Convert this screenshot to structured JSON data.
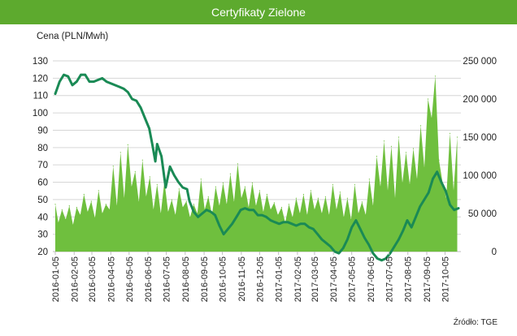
{
  "chart_data": {
    "type": "line",
    "title": "Certyfikaty Zielone",
    "ylabel": "Cena (PLN/Mwh)",
    "source": "Źródło: TGE",
    "ylim": [
      20,
      130
    ],
    "y_ticks": [
      "130",
      "120",
      "110",
      "100",
      "90",
      "80",
      "70",
      "60",
      "50",
      "40",
      "30",
      "20"
    ],
    "y2lim": [
      0,
      250000
    ],
    "y2_ticks": [
      "250 000",
      "200 000",
      "150 000",
      "100 000",
      "50 000",
      "0"
    ],
    "x_start": "2016-01-01",
    "x_end": "2017-10-31",
    "categories": [
      "2016-01-05",
      "2016-02-05",
      "2016-03-05",
      "2016-04-05",
      "2016-05-05",
      "2016-06-05",
      "2016-07-05",
      "2016-08-05",
      "2016-09-05",
      "2016-10-05",
      "2016-11-05",
      "2016-12-05",
      "2017-01-05",
      "2017-02-05",
      "2017-03-05",
      "2017-04-05",
      "2017-05-05",
      "2017-06-05",
      "2017-07-05",
      "2017-08-05",
      "2017-09-05",
      "2017-10-05"
    ],
    "grid": true,
    "series": [
      {
        "kind": "area",
        "axis": "right",
        "color": "#6fbf3e",
        "x": [
          "2016-01-05",
          "2016-01-10",
          "2016-01-16",
          "2016-01-22",
          "2016-01-28",
          "2016-02-03",
          "2016-02-09",
          "2016-02-15",
          "2016-02-21",
          "2016-02-27",
          "2016-03-04",
          "2016-03-10",
          "2016-03-16",
          "2016-03-22",
          "2016-03-28",
          "2016-04-03",
          "2016-04-09",
          "2016-04-15",
          "2016-04-21",
          "2016-04-27",
          "2016-05-03",
          "2016-05-09",
          "2016-05-15",
          "2016-05-21",
          "2016-05-27",
          "2016-06-02",
          "2016-06-08",
          "2016-06-14",
          "2016-06-20",
          "2016-06-26",
          "2016-07-02",
          "2016-07-08",
          "2016-07-14",
          "2016-07-20",
          "2016-07-26",
          "2016-08-01",
          "2016-08-07",
          "2016-08-13",
          "2016-08-19",
          "2016-08-25",
          "2016-08-31",
          "2016-09-06",
          "2016-09-12",
          "2016-09-18",
          "2016-09-24",
          "2016-09-30",
          "2016-10-06",
          "2016-10-12",
          "2016-10-18",
          "2016-10-24",
          "2016-10-30",
          "2016-11-05",
          "2016-11-11",
          "2016-11-17",
          "2016-11-23",
          "2016-11-29",
          "2016-12-05",
          "2016-12-11",
          "2016-12-17",
          "2016-12-23",
          "2016-12-29",
          "2017-01-04",
          "2017-01-10",
          "2017-01-16",
          "2017-01-22",
          "2017-01-28",
          "2017-02-03",
          "2017-02-09",
          "2017-02-15",
          "2017-02-21",
          "2017-02-27",
          "2017-03-05",
          "2017-03-11",
          "2017-03-17",
          "2017-03-23",
          "2017-03-29",
          "2017-04-04",
          "2017-04-10",
          "2017-04-16",
          "2017-04-22",
          "2017-04-28",
          "2017-05-04",
          "2017-05-10",
          "2017-05-16",
          "2017-05-22",
          "2017-05-28",
          "2017-06-03",
          "2017-06-09",
          "2017-06-15",
          "2017-06-21",
          "2017-06-27",
          "2017-07-03",
          "2017-07-09",
          "2017-07-15",
          "2017-07-21",
          "2017-07-27",
          "2017-08-02",
          "2017-08-08",
          "2017-08-14",
          "2017-08-20",
          "2017-08-26",
          "2017-09-01",
          "2017-09-07",
          "2017-09-13",
          "2017-09-19",
          "2017-09-25",
          "2017-10-01",
          "2017-10-07",
          "2017-10-13",
          "2017-10-19",
          "2017-10-25"
        ],
        "values": [
          62000,
          38000,
          55000,
          42000,
          60000,
          35000,
          58000,
          48000,
          75000,
          52000,
          66000,
          44000,
          80000,
          50000,
          62000,
          55000,
          112000,
          60000,
          130000,
          70000,
          140000,
          85000,
          105000,
          65000,
          120000,
          72000,
          98000,
          55000,
          88000,
          50000,
          92000,
          52000,
          68000,
          48000,
          82000,
          58000,
          66000,
          45000,
          62000,
          50000,
          95000,
          55000,
          72000,
          48000,
          85000,
          60000,
          90000,
          62000,
          102000,
          65000,
          115000,
          70000,
          85000,
          58000,
          90000,
          60000,
          80000,
          52000,
          75000,
          55000,
          64000,
          48000,
          58000,
          38000,
          62000,
          45000,
          70000,
          50000,
          75000,
          48000,
          80000,
          55000,
          70000,
          50000,
          72000,
          48000,
          88000,
          55000,
          78000,
          45000,
          70000,
          42000,
          88000,
          50000,
          65000,
          48000,
          95000,
          60000,
          125000,
          85000,
          145000,
          80000,
          138000,
          70000,
          150000,
          90000,
          130000,
          88000,
          135000,
          95000,
          165000,
          110000,
          200000,
          175000,
          230000,
          120000,
          90000,
          70000,
          155000,
          80000,
          150000
        ]
      },
      {
        "kind": "line",
        "axis": "left",
        "color": "#1a8a55",
        "x": [
          "2016-01-05",
          "2016-01-12",
          "2016-01-19",
          "2016-01-26",
          "2016-02-02",
          "2016-02-09",
          "2016-02-16",
          "2016-02-23",
          "2016-03-01",
          "2016-03-08",
          "2016-03-15",
          "2016-03-22",
          "2016-03-29",
          "2016-04-05",
          "2016-04-12",
          "2016-04-19",
          "2016-04-26",
          "2016-05-03",
          "2016-05-10",
          "2016-05-17",
          "2016-05-24",
          "2016-05-31",
          "2016-06-07",
          "2016-06-12",
          "2016-06-17",
          "2016-06-20",
          "2016-06-27",
          "2016-07-04",
          "2016-07-11",
          "2016-07-18",
          "2016-07-25",
          "2016-08-01",
          "2016-08-08",
          "2016-08-12",
          "2016-08-19",
          "2016-08-26",
          "2016-09-02",
          "2016-09-09",
          "2016-09-16",
          "2016-09-23",
          "2016-09-30",
          "2016-10-07",
          "2016-10-14",
          "2016-10-21",
          "2016-10-28",
          "2016-11-04",
          "2016-11-11",
          "2016-11-18",
          "2016-11-25",
          "2016-12-02",
          "2016-12-09",
          "2016-12-16",
          "2016-12-23",
          "2016-12-30",
          "2017-01-06",
          "2017-01-13",
          "2017-01-20",
          "2017-01-27",
          "2017-02-03",
          "2017-02-10",
          "2017-02-17",
          "2017-02-24",
          "2017-03-03",
          "2017-03-10",
          "2017-03-17",
          "2017-03-24",
          "2017-03-31",
          "2017-04-07",
          "2017-04-14",
          "2017-04-21",
          "2017-04-28",
          "2017-05-05",
          "2017-05-12",
          "2017-05-19",
          "2017-05-26",
          "2017-06-02",
          "2017-06-09",
          "2017-06-16",
          "2017-06-23",
          "2017-06-30",
          "2017-07-07",
          "2017-07-14",
          "2017-07-21",
          "2017-07-28",
          "2017-08-04",
          "2017-08-11",
          "2017-08-18",
          "2017-08-25",
          "2017-09-01",
          "2017-09-08",
          "2017-09-15",
          "2017-09-22",
          "2017-09-29",
          "2017-10-06",
          "2017-10-13",
          "2017-10-20",
          "2017-10-27"
        ],
        "values": [
          111,
          118,
          122,
          121,
          116,
          118,
          122,
          122,
          118,
          118,
          119,
          120,
          118,
          117,
          116,
          115,
          114,
          112,
          108,
          107,
          103,
          97,
          91,
          82,
          72,
          82,
          75,
          57,
          69,
          64,
          60,
          57,
          56,
          49,
          43,
          40,
          42,
          44,
          43,
          41,
          35,
          30,
          33,
          36,
          40,
          44,
          45,
          44,
          44,
          41,
          41,
          40,
          38,
          37,
          36,
          37,
          37,
          36,
          35,
          36,
          36,
          34,
          33,
          30,
          27,
          25,
          23,
          20,
          19,
          22,
          27,
          34,
          38,
          33,
          28,
          24,
          19,
          16,
          15,
          16,
          19,
          23,
          27,
          32,
          38,
          34,
          40,
          46,
          50,
          54,
          62,
          66,
          60,
          55,
          47,
          44,
          45
        ]
      }
    ]
  }
}
